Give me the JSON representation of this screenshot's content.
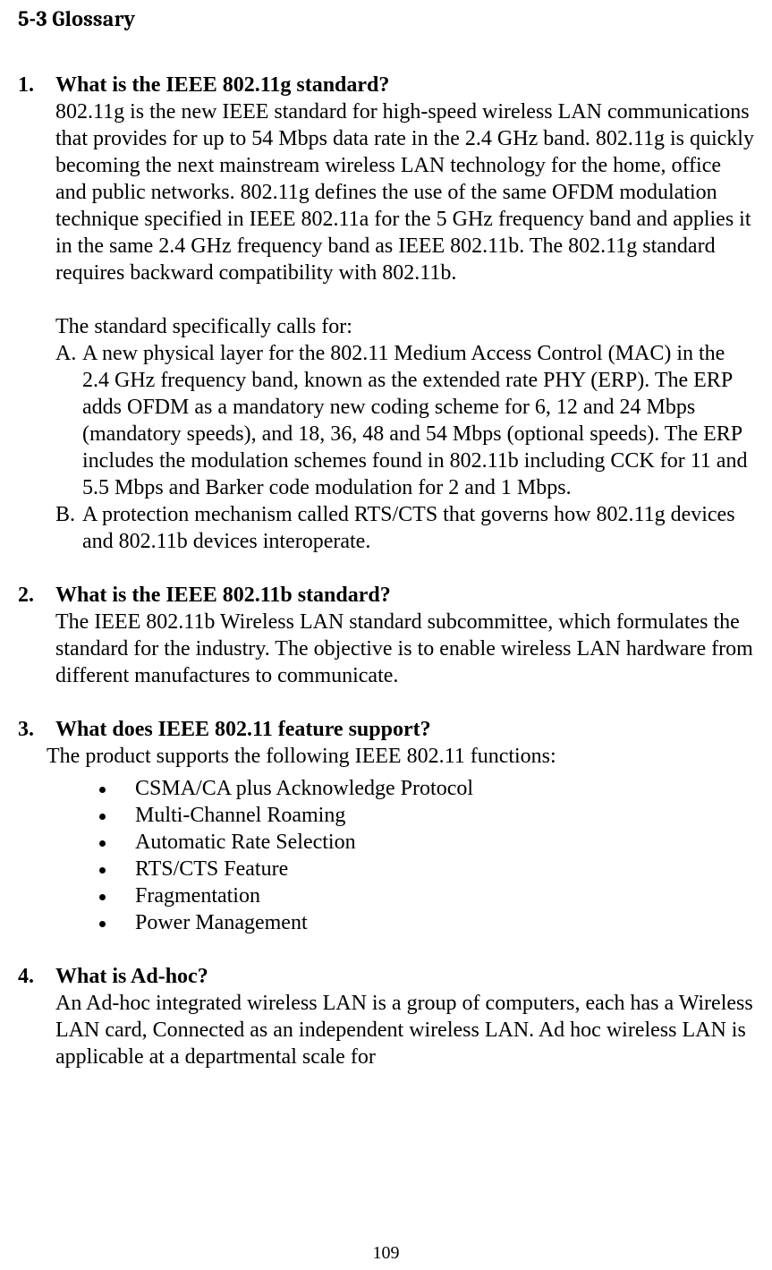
{
  "section_title": "5-3 Glossary",
  "items": [
    {
      "num": "1.",
      "question": "What is the IEEE 802.11g standard?",
      "body": "802.11g is the new IEEE standard for high-speed wireless LAN communications that provides for up to 54 Mbps data rate in the 2.4 GHz band. 802.11g is quickly becoming the next mainstream wireless LAN technology for the home, office and public networks. 802.11g defines the use of the same OFDM modulation technique specified in IEEE 802.11a for the 5 GHz frequency band and applies it in the same 2.4 GHz frequency band as IEEE 802.11b. The 802.11g standard requires backward compatibility with 802.11b.",
      "sub_intro": "The standard specifically calls for:",
      "sublist": [
        {
          "letter": "A.",
          "text": "A new physical layer for the 802.11 Medium Access Control (MAC) in the 2.4 GHz frequency band, known as the extended rate PHY (ERP). The ERP adds OFDM as a mandatory new coding scheme for 6, 12 and 24 Mbps (mandatory speeds), and 18, 36, 48 and 54 Mbps (optional speeds). The ERP includes the modulation schemes found in 802.11b including CCK for 11 and 5.5 Mbps and Barker code modulation for 2 and 1 Mbps."
        },
        {
          "letter": "B.",
          "text": "A protection mechanism called RTS/CTS that governs how 802.11g devices and 802.11b devices interoperate."
        }
      ]
    },
    {
      "num": "2.",
      "question": "What is the IEEE 802.11b standard?",
      "body": "The IEEE 802.11b Wireless LAN standard subcommittee, which formulates the standard for the industry. The objective is to enable wireless LAN hardware from different manufactures to communicate."
    },
    {
      "num": "3.",
      "question": "What does IEEE 802.11 feature support?",
      "body_slight": "The product supports the following IEEE 802.11 functions:",
      "bullets": [
        "CSMA/CA plus Acknowledge Protocol",
        "Multi-Channel Roaming",
        "Automatic Rate Selection",
        "RTS/CTS Feature",
        "Fragmentation",
        "Power Management"
      ]
    },
    {
      "num": "4.",
      "question": "What is Ad-hoc?",
      "body": "An Ad-hoc integrated wireless LAN is a group of computers, each has a Wireless LAN card, Connected as an independent wireless LAN. Ad hoc wireless LAN is applicable at a departmental scale for"
    }
  ],
  "page_number": "109"
}
